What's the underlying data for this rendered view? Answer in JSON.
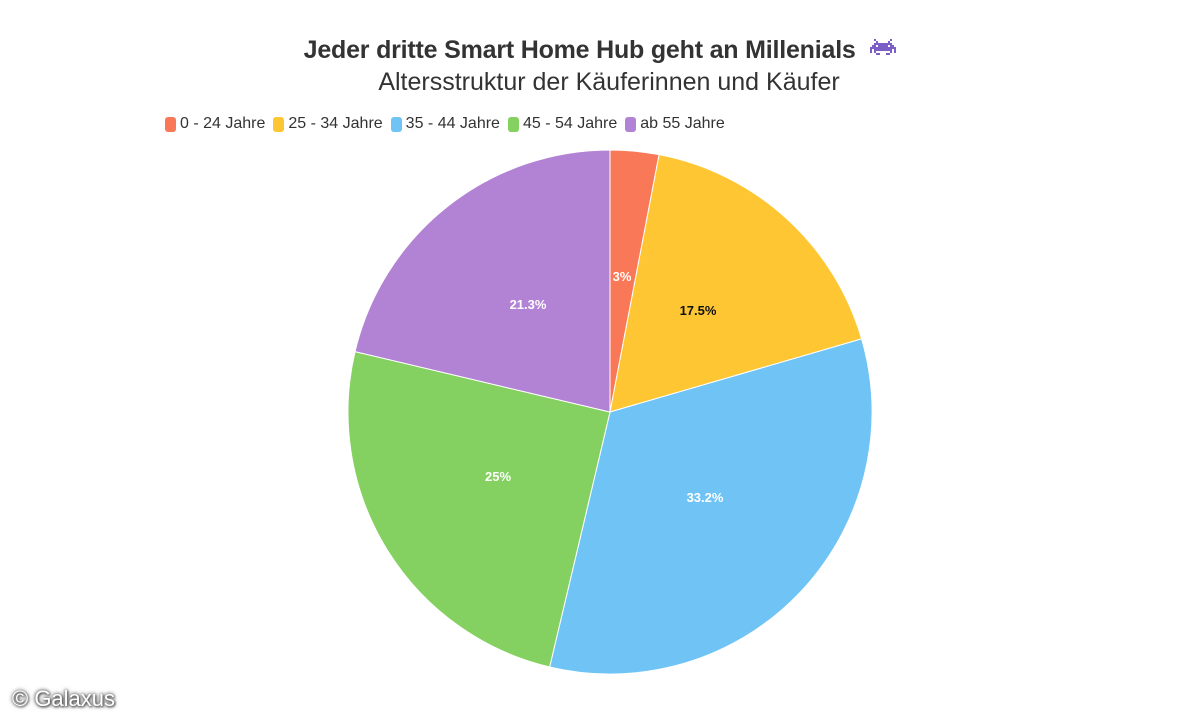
{
  "header": {
    "title": "Jeder dritte Smart Home Hub geht an Millenials",
    "title_icon": "space-invader-icon",
    "subtitle": "Altersstruktur der Käuferinnen und Käufer"
  },
  "legend": {
    "items": [
      {
        "label": "0 - 24 Jahre",
        "color": "#f87858"
      },
      {
        "label": "25 - 34 Jahre",
        "color": "#fdc632"
      },
      {
        "label": "35 - 44 Jahre",
        "color": "#6fc4f5"
      },
      {
        "label": "45 - 54 Jahre",
        "color": "#84d060"
      },
      {
        "label": "ab 55 Jahre",
        "color": "#b282d4"
      }
    ]
  },
  "slices": [
    {
      "label": "3%",
      "text_color": "#ffffff"
    },
    {
      "label": "17.5%",
      "text_color": "#111111"
    },
    {
      "label": "33.2%",
      "text_color": "#ffffff"
    },
    {
      "label": "25%",
      "text_color": "#ffffff"
    },
    {
      "label": "21.3%",
      "text_color": "#ffffff"
    }
  ],
  "credit": "© Galaxus",
  "chart_data": {
    "type": "pie",
    "title": "Jeder dritte Smart Home Hub geht an Millenials",
    "subtitle": "Altersstruktur der Käuferinnen und Käufer",
    "categories": [
      "0 - 24 Jahre",
      "25 - 34 Jahre",
      "35 - 44 Jahre",
      "45 - 54 Jahre",
      "ab 55 Jahre"
    ],
    "values": [
      3,
      17.5,
      33.2,
      25,
      21.3
    ],
    "unit": "%",
    "colors": [
      "#f87858",
      "#fdc632",
      "#6fc4f5",
      "#84d060",
      "#b282d4"
    ],
    "legend_position": "top-left",
    "start_angle": "12 o'clock, clockwise",
    "data_labels": [
      "3%",
      "17.5%",
      "33.2%",
      "25%",
      "21.3%"
    ]
  }
}
